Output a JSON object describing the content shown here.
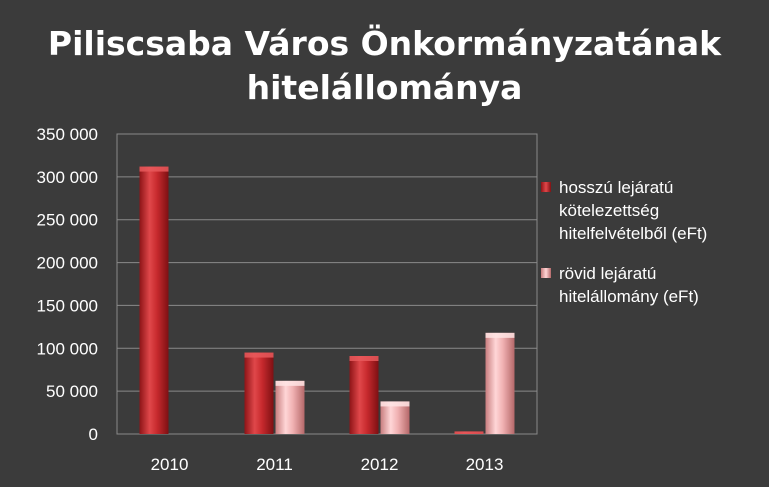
{
  "title_lines": [
    "Piliscsaba Város Önkormányzatának",
    "hitelállománya"
  ],
  "chart_data": {
    "type": "bar",
    "title": "Piliscsaba Város Önkormányzatának hitelállománya",
    "categories": [
      "2010",
      "2011",
      "2012",
      "2013"
    ],
    "series": [
      {
        "name": "hosszú lejáratú kötelezettség hitelfelvételből (eFt)",
        "values": [
          312000,
          95000,
          91000,
          3000
        ],
        "color": "#c0282b"
      },
      {
        "name": "rövid lejáratú hitelállomány (eFt)",
        "values": [
          0,
          62000,
          38000,
          118000
        ],
        "color": "#e49a9b"
      }
    ],
    "ylim": [
      0,
      350000
    ],
    "yticks": [
      0,
      50000,
      100000,
      150000,
      200000,
      250000,
      300000,
      350000
    ],
    "ytick_labels": [
      "0",
      "50 000",
      "100 000",
      "150 000",
      "200 000",
      "250 000",
      "300 000",
      "350 000"
    ],
    "grid": true,
    "legend_position": "right"
  },
  "legend": [
    {
      "lines": [
        "hosszú lejáratú",
        "kötelezettség",
        "hitelfelvételből (eFt)"
      ],
      "color": "#c0282b"
    },
    {
      "lines": [
        "rövid lejáratú",
        "hitelállomány (eFt)"
      ],
      "color": "#e49a9b"
    }
  ]
}
